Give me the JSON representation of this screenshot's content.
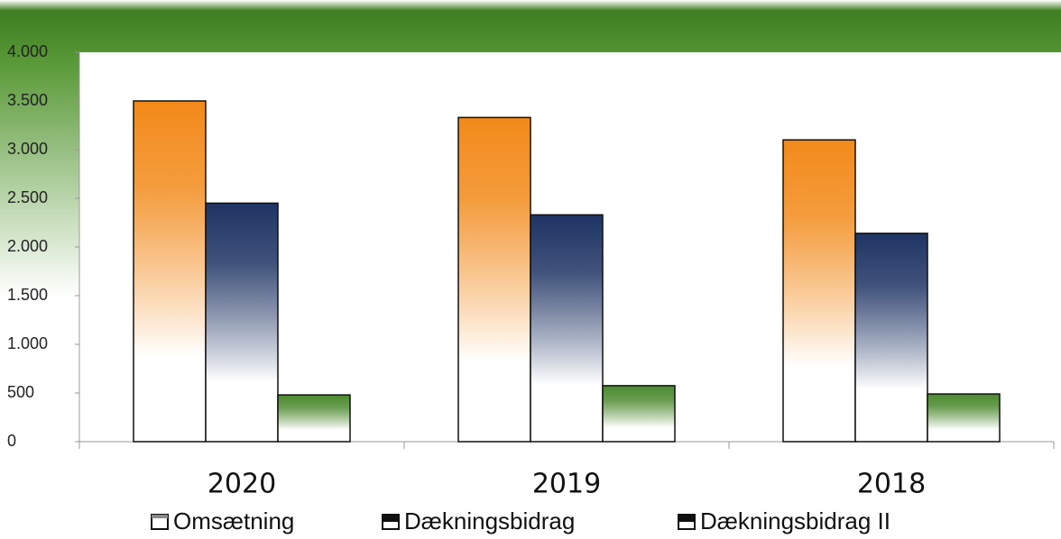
{
  "chart_data": {
    "type": "bar",
    "categories": [
      "2020",
      "2019",
      "2018"
    ],
    "series": [
      {
        "name": "Omsætning",
        "color": "#f28a1a",
        "values": [
          3500,
          3330,
          3100
        ]
      },
      {
        "name": "Dækningsbidrag",
        "color": "#1f3464",
        "values": [
          2450,
          2330,
          2140
        ]
      },
      {
        "name": "Dækningsbidrag II",
        "color": "#4c8a2e",
        "values": [
          480,
          575,
          490
        ]
      }
    ],
    "ylim": [
      0,
      4000
    ],
    "yticks": [
      0,
      500,
      {
        "value": 1000,
        "label": "1.000"
      },
      {
        "value": 1500,
        "label": "1.500"
      },
      {
        "value": 2000,
        "label": "2.000"
      },
      {
        "value": 2500,
        "label": "2.500"
      },
      {
        "value": 3000,
        "label": "3.000"
      },
      {
        "value": 3500,
        "label": "3.500"
      },
      {
        "value": 4000,
        "label": "4.000"
      }
    ],
    "grid": false
  }
}
